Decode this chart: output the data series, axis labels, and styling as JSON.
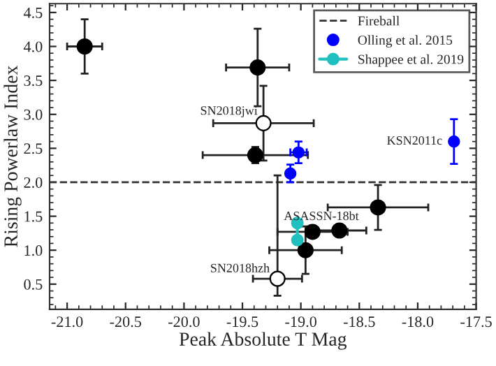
{
  "chart_data": {
    "type": "scatter",
    "xlabel": "Peak Absolute T Mag",
    "ylabel": "Rising Powerlaw Index",
    "xlim": [
      -21.15,
      -17.5
    ],
    "ylim": [
      0.13,
      4.63
    ],
    "xticks": [
      {
        "value": -21.0,
        "label": "-21.0"
      },
      {
        "value": -20.5,
        "label": "-20.5"
      },
      {
        "value": -20.0,
        "label": "-20.0"
      },
      {
        "value": -19.5,
        "label": "-19.5"
      },
      {
        "value": -19.0,
        "label": "-19.0"
      },
      {
        "value": -18.5,
        "label": "-18.5"
      },
      {
        "value": -18.0,
        "label": "-18.0"
      },
      {
        "value": -17.5,
        "label": "-17.5"
      }
    ],
    "yticks": [
      0.5,
      {
        "value": 1.0,
        "label": "1.0"
      },
      1.5,
      {
        "value": 2.0,
        "label": "2.0"
      },
      2.5,
      {
        "value": 3.0,
        "label": "3.0"
      },
      3.5,
      {
        "value": 4.0,
        "label": "4.0"
      },
      4.5
    ],
    "series": [
      {
        "color": "#000000",
        "marker": "circle",
        "x": [
          -20.85,
          -19.37,
          -19.39,
          -18.34,
          -18.9,
          -18.67,
          -18.96
        ],
        "values": [
          4.0,
          3.69,
          2.4,
          1.63,
          1.27,
          1.29,
          1.0
        ],
        "errors": [
          0.4,
          0.57,
          0.12,
          0.33,
          0.08,
          0.08,
          0.35
        ],
        "xerrors": [
          0.15,
          0.27,
          0.45,
          0.43,
          0.3,
          0.23,
          0.31
        ]
      },
      {
        "color": "#ffffff",
        "marker": "circle",
        "x": [
          -19.32,
          -19.2
        ],
        "values": [
          2.87,
          0.58
        ],
        "errors": [
          0.55,
          [
            0.33,
            2.1
          ]
        ],
        "xerrors": [
          0.43,
          0.21
        ]
      },
      {
        "name": "Olling et al. 2015",
        "color": "#0000ff",
        "marker": "circle",
        "x": [
          -19.02,
          -19.09,
          -17.69
        ],
        "values": [
          2.44,
          2.13,
          2.6
        ],
        "errors": [
          0.16,
          0.13,
          0.33
        ],
        "xerrors": [
          0.07,
          null,
          null
        ]
      },
      {
        "name": "Shappee et al. 2019",
        "type": "line",
        "color": "#20c0c0",
        "marker": "circle",
        "x": [
          -19.03,
          -19.03
        ],
        "values": [
          1.4,
          1.15
        ]
      }
    ],
    "ref_lines": [
      {
        "axis": "y",
        "value": 2.0,
        "label": "Fireball",
        "color": "#333333",
        "line_style": "dashed"
      }
    ],
    "annotations": [
      {
        "text": "SN2018jwi",
        "x": -19.32,
        "y": 2.87
      },
      {
        "text": "SN2018hzh",
        "x": -19.2,
        "y": 0.58
      },
      {
        "text": "KSN2011c",
        "x": -17.69,
        "y": 2.6
      },
      {
        "text": "ASASSN-18bt",
        "x": -18.67,
        "y": 1.29
      }
    ],
    "legend": "top right",
    "grid": false
  }
}
